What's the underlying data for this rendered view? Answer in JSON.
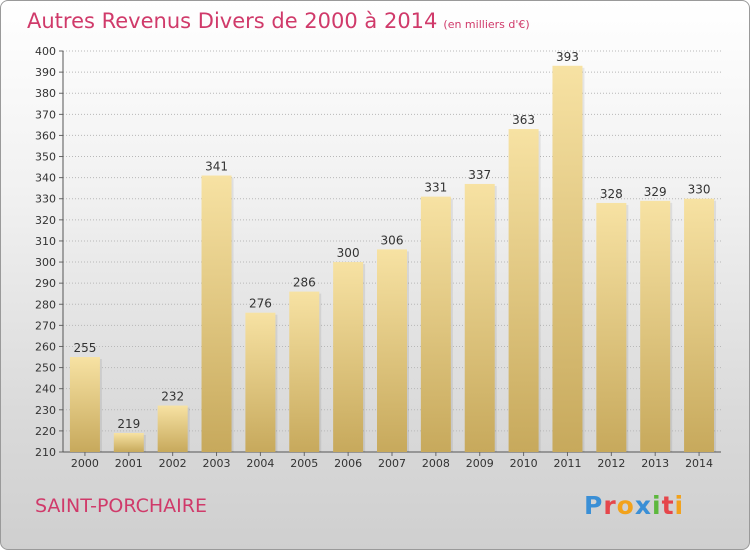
{
  "header": {
    "title": "Autres Revenus Divers de 2000 à 2014",
    "unit": "(en milliers d'€)"
  },
  "footer": {
    "commune": "SAINT-PORCHAIRE",
    "brand": "Proxiti"
  },
  "colors": {
    "title": "#d03a6a",
    "bar_top": "#f7e2a3",
    "bar_bottom": "#c7a95c",
    "grid": "#b8b8b8"
  },
  "chart_data": {
    "type": "bar",
    "categories": [
      "2000",
      "2001",
      "2002",
      "2003",
      "2004",
      "2005",
      "2006",
      "2007",
      "2008",
      "2009",
      "2010",
      "2011",
      "2012",
      "2013",
      "2014"
    ],
    "values": [
      255,
      219,
      232,
      341,
      276,
      286,
      300,
      306,
      331,
      337,
      363,
      393,
      328,
      329,
      330
    ],
    "title": "Autres Revenus Divers de 2000 à 2014",
    "subtitle": "(en milliers d'€)",
    "xlabel": "",
    "ylabel": "",
    "ylim": [
      210,
      400
    ],
    "ytick_step": 10,
    "grid": true,
    "data_labels": true
  }
}
